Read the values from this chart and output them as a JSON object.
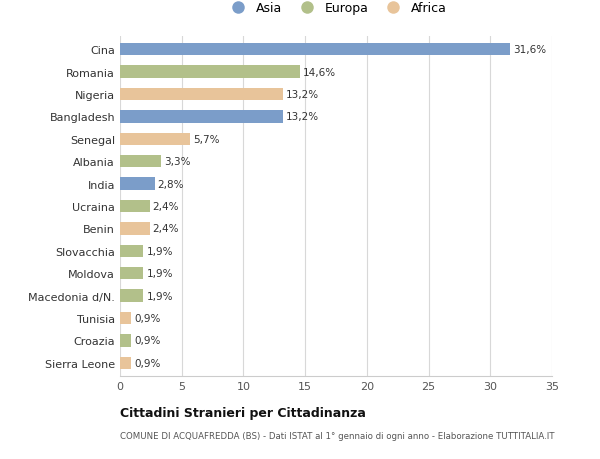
{
  "countries": [
    "Cina",
    "Romania",
    "Nigeria",
    "Bangladesh",
    "Senegal",
    "Albania",
    "India",
    "Ucraina",
    "Benin",
    "Slovacchia",
    "Moldova",
    "Macedonia d/N.",
    "Tunisia",
    "Croazia",
    "Sierra Leone"
  ],
  "values": [
    31.6,
    14.6,
    13.2,
    13.2,
    5.7,
    3.3,
    2.8,
    2.4,
    2.4,
    1.9,
    1.9,
    1.9,
    0.9,
    0.9,
    0.9
  ],
  "labels": [
    "31,6%",
    "14,6%",
    "13,2%",
    "13,2%",
    "5,7%",
    "3,3%",
    "2,8%",
    "2,4%",
    "2,4%",
    "1,9%",
    "1,9%",
    "1,9%",
    "0,9%",
    "0,9%",
    "0,9%"
  ],
  "continents": [
    "Asia",
    "Europa",
    "Africa",
    "Asia",
    "Africa",
    "Europa",
    "Asia",
    "Europa",
    "Africa",
    "Europa",
    "Europa",
    "Europa",
    "Africa",
    "Europa",
    "Africa"
  ],
  "colors": {
    "Asia": "#7b9dc9",
    "Europa": "#b2c08a",
    "Africa": "#e8c49a"
  },
  "xlim": [
    0,
    35
  ],
  "xticks": [
    0,
    5,
    10,
    15,
    20,
    25,
    30,
    35
  ],
  "title": "Cittadini Stranieri per Cittadinanza",
  "subtitle": "COMUNE DI ACQUAFREDDA (BS) - Dati ISTAT al 1° gennaio di ogni anno - Elaborazione TUTTITALIA.IT",
  "background_color": "#ffffff",
  "grid_color": "#d8d8d8",
  "bar_height": 0.55
}
